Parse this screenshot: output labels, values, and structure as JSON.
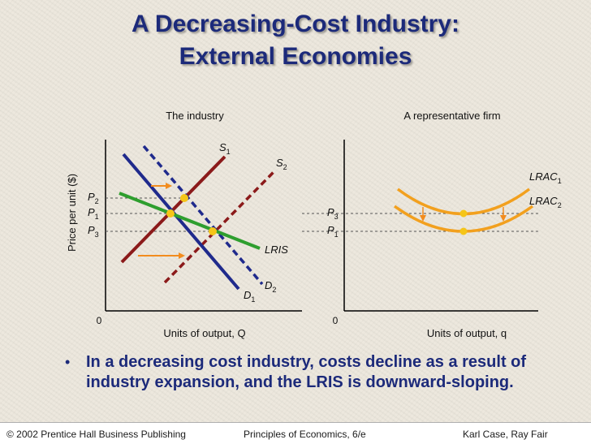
{
  "slide": {
    "title_line1": "A Decreasing-Cost Industry:",
    "title_line2": "External Economies",
    "bullet": "In a decreasing cost industry, costs decline as a result of industry expansion, and the LRIS is downward-sloping."
  },
  "industry_panel": {
    "title": "The industry",
    "y_axis_label": "Price per unit ($)",
    "x_axis_label": "Units of output, Q",
    "origin": "0",
    "price_labels": {
      "p2": "P",
      "p2_sub": "2",
      "p1": "P",
      "p1_sub": "1",
      "p3": "P",
      "p3_sub": "3"
    },
    "curves": {
      "s1": "S",
      "s1_sub": "1",
      "s2": "S",
      "s2_sub": "2",
      "d1": "D",
      "d1_sub": "1",
      "d2": "D",
      "d2_sub": "2",
      "lris": "LRIS"
    }
  },
  "firm_panel": {
    "title": "A representative firm",
    "x_axis_label": "Units of output, q",
    "origin": "0",
    "price_labels": {
      "p3": "P",
      "p3_sub": "3",
      "p1": "P",
      "p1_sub": "1"
    },
    "curves": {
      "lrac1": "LRAC",
      "lrac1_sub": "1",
      "lrac2": "LRAC",
      "lrac2_sub": "2"
    }
  },
  "footer": {
    "left": "© 2002 Prentice Hall Business Publishing",
    "center": "Principles of Economics, 6/e",
    "right": "Karl Case, Ray Fair"
  },
  "colors": {
    "supply": "#8b1a1a",
    "demand": "#1f2a8c",
    "lris": "#2e9e2e",
    "lrac": "#f2a01e",
    "point": "#f5c518",
    "arrow": "#f28c1e",
    "title": "#1c2a7a"
  }
}
